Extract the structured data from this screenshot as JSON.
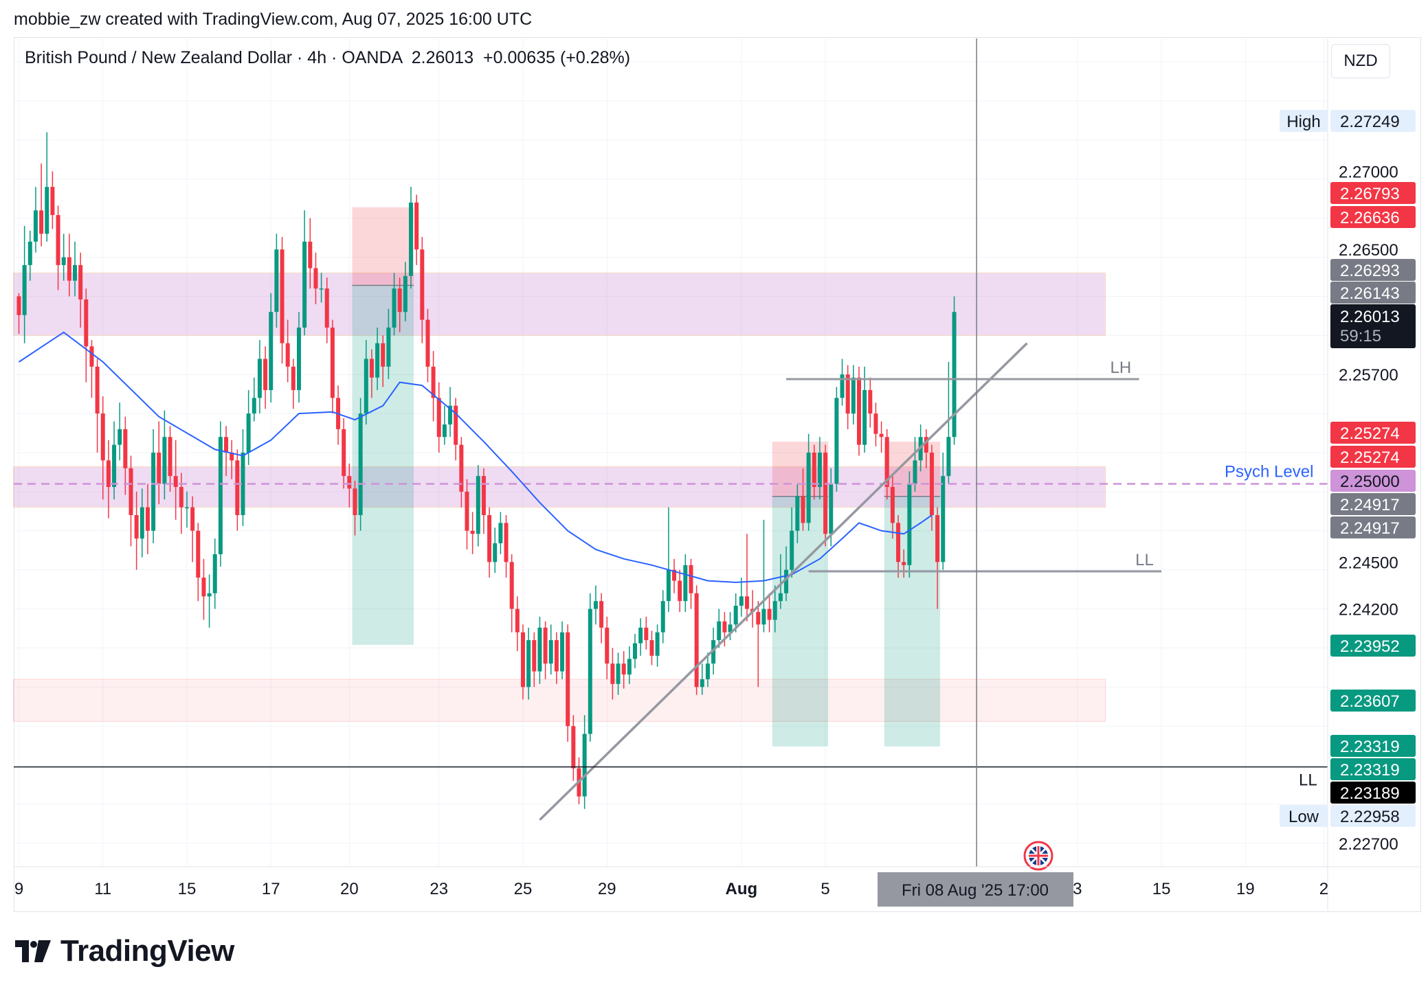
{
  "credit": "mobbie_zw created with TradingView.com, Aug 07, 2025 16:00 UTC",
  "header": {
    "symbol": "British Pound / New Zealand Dollar · 4h · OANDA",
    "price": "2.26013",
    "change": "+0.00635 (+0.28%)"
  },
  "currency": "NZD",
  "brand": "TradingView",
  "colors": {
    "up": "#089981",
    "down": "#f23645",
    "ema": "#2962ff",
    "zone": "#e1bee7",
    "psych": "#ce93d8",
    "trend": "#9598a1"
  },
  "chart_data": {
    "type": "candlestick",
    "symbol": "GBPNZD",
    "timeframe": "4h",
    "ylim": [
      2.2255,
      2.2785
    ],
    "y_ticks": [
      "2.27000",
      "2.26500",
      "2.25700",
      "2.24500",
      "2.24200",
      "2.22700"
    ],
    "x_ticks": [
      {
        "label": "9",
        "bar": 0
      },
      {
        "label": "11",
        "bar": 15
      },
      {
        "label": "15",
        "bar": 30
      },
      {
        "label": "17",
        "bar": 45
      },
      {
        "label": "20",
        "bar": 59
      },
      {
        "label": "23",
        "bar": 75
      },
      {
        "label": "25",
        "bar": 90
      },
      {
        "label": "29",
        "bar": 105
      },
      {
        "label": "Aug",
        "bar": 129
      },
      {
        "label": "5",
        "bar": 144
      },
      {
        "label": "3",
        "bar": 189
      },
      {
        "label": "15",
        "bar": 204
      },
      {
        "label": "19",
        "bar": 219
      },
      {
        "label": "2",
        "bar": 233
      }
    ],
    "cursor_label": "Fri 08 Aug '25   17:00",
    "cursor_bar": 171,
    "price_tags": [
      {
        "label": "High",
        "value": "2.27249",
        "kind": "high"
      },
      {
        "value": "2.26793",
        "kind": "red"
      },
      {
        "value": "2.26636",
        "kind": "red"
      },
      {
        "value": "2.26293",
        "kind": "gray"
      },
      {
        "value": "2.26143",
        "kind": "gray"
      },
      {
        "value": "2.26013",
        "kind": "last",
        "sub": "59:15"
      },
      {
        "value": "2.25274",
        "kind": "red"
      },
      {
        "value": "2.25274",
        "kind": "red"
      },
      {
        "value": "2.25000",
        "kind": "psych"
      },
      {
        "value": "2.24917",
        "kind": "gray"
      },
      {
        "value": "2.24917",
        "kind": "gray"
      },
      {
        "value": "2.23952",
        "kind": "green"
      },
      {
        "value": "2.23607",
        "kind": "green"
      },
      {
        "value": "2.23319",
        "kind": "green"
      },
      {
        "value": "2.23319",
        "kind": "green"
      },
      {
        "value": "2.23189",
        "kind": "black"
      },
      {
        "label": "Low",
        "value": "2.22958",
        "kind": "low"
      }
    ],
    "annotations": [
      {
        "text": "LH",
        "price": 2.2567
      },
      {
        "text": "LL",
        "price": 2.2444
      },
      {
        "text": "Psych Level",
        "price": 2.25
      },
      {
        "text": "LL",
        "price": 2.23189
      }
    ],
    "zones": [
      {
        "name": "supply-zone",
        "from_bar": 0,
        "to_bar": 194,
        "low": 2.2595,
        "high": 2.2635
      },
      {
        "name": "psych-zone",
        "from_bar": 0,
        "to_bar": 194,
        "low": 2.2485,
        "high": 2.2511
      },
      {
        "name": "demand-zone",
        "from_bar": 0,
        "to_bar": 194,
        "low": 2.2348,
        "high": 2.2375
      }
    ],
    "positions": [
      {
        "from_bar": 60,
        "to_bar": 70,
        "entry": 2.2627,
        "stop": 2.2677,
        "target": 2.2397
      },
      {
        "from_bar": 135,
        "to_bar": 144,
        "entry": 2.2492,
        "stop": 2.2527,
        "target": 2.2332
      },
      {
        "from_bar": 155,
        "to_bar": 164,
        "entry": 2.2492,
        "stop": 2.2527,
        "target": 2.2332
      }
    ],
    "candles": [
      [
        2.262,
        2.2608,
        2.2622,
        2.2596
      ],
      [
        2.2608,
        2.264,
        2.2665,
        2.259
      ],
      [
        2.264,
        2.2655,
        2.2662,
        2.263
      ],
      [
        2.2655,
        2.2675,
        2.269,
        2.2648
      ],
      [
        2.2675,
        2.266,
        2.2705,
        2.2652
      ],
      [
        2.266,
        2.269,
        2.2725,
        2.2655
      ],
      [
        2.269,
        2.2672,
        2.27,
        2.2663
      ],
      [
        2.2672,
        2.264,
        2.2678,
        2.2624
      ],
      [
        2.264,
        2.2645,
        2.266,
        2.263
      ],
      [
        2.2645,
        2.263,
        2.266,
        2.262
      ],
      [
        2.263,
        2.264,
        2.2655,
        2.262
      ],
      [
        2.264,
        2.2618,
        2.2648,
        2.26
      ],
      [
        2.2618,
        2.2588,
        2.2625,
        2.2565
      ],
      [
        2.2588,
        2.2575,
        2.2592,
        2.2555
      ],
      [
        2.2575,
        2.2545,
        2.258,
        2.252
      ],
      [
        2.2545,
        2.2515,
        2.2556,
        2.249
      ],
      [
        2.2515,
        2.2498,
        2.2528,
        2.2478
      ],
      [
        2.2498,
        2.2525,
        2.254,
        2.249
      ],
      [
        2.2525,
        2.2535,
        2.2552,
        2.2515
      ],
      [
        2.2535,
        2.251,
        2.2543,
        2.2493
      ],
      [
        2.251,
        2.248,
        2.2518,
        2.246
      ],
      [
        2.248,
        2.2465,
        2.2495,
        2.2445
      ],
      [
        2.2465,
        2.2485,
        2.2497,
        2.2453
      ],
      [
        2.2485,
        2.247,
        2.25,
        2.2455
      ],
      [
        2.247,
        2.252,
        2.2535,
        2.2462
      ],
      [
        2.252,
        2.25,
        2.254,
        2.2487
      ],
      [
        2.25,
        2.253,
        2.2547,
        2.249
      ],
      [
        2.253,
        2.2505,
        2.2537,
        2.2495
      ],
      [
        2.2505,
        2.2498,
        2.2528,
        2.2477
      ],
      [
        2.2498,
        2.2485,
        2.2507,
        2.2468
      ],
      [
        2.2485,
        2.2485,
        2.2495,
        2.2472
      ],
      [
        2.2485,
        2.247,
        2.2492,
        2.245
      ],
      [
        2.247,
        2.244,
        2.2475,
        2.2425
      ],
      [
        2.244,
        2.2428,
        2.2452,
        2.2413
      ],
      [
        2.2428,
        2.243,
        2.2442,
        2.2408
      ],
      [
        2.243,
        2.2455,
        2.2465,
        2.242
      ],
      [
        2.2455,
        2.253,
        2.254,
        2.2447
      ],
      [
        2.253,
        2.252,
        2.2537,
        2.2505
      ],
      [
        2.252,
        2.2515,
        2.2528,
        2.2503
      ],
      [
        2.2515,
        2.248,
        2.2522,
        2.247
      ],
      [
        2.248,
        2.252,
        2.2535,
        2.2473
      ],
      [
        2.252,
        2.2545,
        2.256,
        2.2512
      ],
      [
        2.2545,
        2.2555,
        2.2568,
        2.254
      ],
      [
        2.2555,
        2.258,
        2.2592,
        2.2545
      ],
      [
        2.258,
        2.256,
        2.2588,
        2.2548
      ],
      [
        2.256,
        2.261,
        2.2622,
        2.2552
      ],
      [
        2.261,
        2.265,
        2.266,
        2.26
      ],
      [
        2.265,
        2.259,
        2.2658,
        2.2577
      ],
      [
        2.259,
        2.2575,
        2.2605,
        2.2565
      ],
      [
        2.2575,
        2.256,
        2.258,
        2.2548
      ],
      [
        2.256,
        2.26,
        2.261,
        2.2552
      ],
      [
        2.26,
        2.2655,
        2.2675,
        2.2595
      ],
      [
        2.2655,
        2.2638,
        2.267,
        2.2625
      ],
      [
        2.2638,
        2.2625,
        2.2648,
        2.2615
      ],
      [
        2.2625,
        2.2625,
        2.2635,
        2.2616
      ],
      [
        2.2625,
        2.26,
        2.2632,
        2.259
      ],
      [
        2.26,
        2.2555,
        2.2605,
        2.2545
      ],
      [
        2.2555,
        2.2535,
        2.2563,
        2.2525
      ],
      [
        2.2535,
        2.2505,
        2.2542,
        2.2497
      ],
      [
        2.2505,
        2.2497,
        2.2513,
        2.2485
      ],
      [
        2.2497,
        2.248,
        2.2502,
        2.2467
      ],
      [
        2.248,
        2.2545,
        2.2555,
        2.247
      ],
      [
        2.2545,
        2.258,
        2.2592,
        2.2538
      ],
      [
        2.258,
        2.2568,
        2.2586,
        2.2555
      ],
      [
        2.2568,
        2.259,
        2.26,
        2.256
      ],
      [
        2.259,
        2.2575,
        2.2595,
        2.2562
      ],
      [
        2.2575,
        2.26,
        2.2612,
        2.2567
      ],
      [
        2.26,
        2.2625,
        2.2635,
        2.2595
      ],
      [
        2.2625,
        2.261,
        2.2632,
        2.2597
      ],
      [
        2.261,
        2.2633,
        2.2642,
        2.2604
      ],
      [
        2.2633,
        2.268,
        2.269,
        2.2625
      ],
      [
        2.268,
        2.265,
        2.2685,
        2.264
      ],
      [
        2.265,
        2.2605,
        2.2658,
        2.259
      ],
      [
        2.2605,
        2.2575,
        2.2612,
        2.2565
      ],
      [
        2.2575,
        2.2555,
        2.2585,
        2.254
      ],
      [
        2.2555,
        2.253,
        2.2565,
        2.252
      ],
      [
        2.253,
        2.2538,
        2.255,
        2.2525
      ],
      [
        2.2538,
        2.255,
        2.2562,
        2.253
      ],
      [
        2.255,
        2.2525,
        2.2555,
        2.2515
      ],
      [
        2.2525,
        2.2495,
        2.253,
        2.2485
      ],
      [
        2.2495,
        2.247,
        2.2503,
        2.2458
      ],
      [
        2.247,
        2.2468,
        2.2482,
        2.2455
      ],
      [
        2.2468,
        2.2505,
        2.2512,
        2.246
      ],
      [
        2.2505,
        2.248,
        2.251,
        2.2468
      ],
      [
        2.248,
        2.245,
        2.2485,
        2.244
      ],
      [
        2.245,
        2.2462,
        2.2472,
        2.2443
      ],
      [
        2.2462,
        2.2475,
        2.2482,
        2.2455
      ],
      [
        2.2475,
        2.245,
        2.248,
        2.244
      ],
      [
        2.245,
        2.242,
        2.2455,
        2.2405
      ],
      [
        2.242,
        2.2405,
        2.2428,
        2.2393
      ],
      [
        2.2405,
        2.237,
        2.241,
        2.2362
      ],
      [
        2.237,
        2.24,
        2.2408,
        2.2362
      ],
      [
        2.24,
        2.238,
        2.2405,
        2.237
      ],
      [
        2.238,
        2.2408,
        2.2415,
        2.2372
      ],
      [
        2.2408,
        2.2385,
        2.2412,
        2.2375
      ],
      [
        2.2385,
        2.24,
        2.241,
        2.2378
      ],
      [
        2.24,
        2.238,
        2.2405,
        2.2372
      ],
      [
        2.238,
        2.2405,
        2.2412,
        2.2375
      ],
      [
        2.2405,
        2.2345,
        2.241,
        2.2335
      ],
      [
        2.2345,
        2.2318,
        2.2352,
        2.231
      ],
      [
        2.2318,
        2.23,
        2.2325,
        2.2295
      ],
      [
        2.23,
        2.234,
        2.2352,
        2.2292
      ],
      [
        2.234,
        2.242,
        2.243,
        2.2335
      ],
      [
        2.242,
        2.2425,
        2.2435,
        2.241
      ],
      [
        2.2425,
        2.2408,
        2.243,
        2.2398
      ],
      [
        2.2408,
        2.2385,
        2.2415,
        2.2375
      ],
      [
        2.2385,
        2.2372,
        2.2395,
        2.2362
      ],
      [
        2.2372,
        2.2385,
        2.2392,
        2.2365
      ],
      [
        2.2385,
        2.2378,
        2.2393,
        2.2369
      ],
      [
        2.2378,
        2.2388,
        2.2396,
        2.2372
      ],
      [
        2.2388,
        2.2398,
        2.2404,
        2.2382
      ],
      [
        2.2398,
        2.2408,
        2.2414,
        2.239
      ],
      [
        2.2408,
        2.24,
        2.2415,
        2.2394
      ],
      [
        2.24,
        2.239,
        2.2406,
        2.2384
      ],
      [
        2.239,
        2.2405,
        2.241,
        2.2383
      ],
      [
        2.2405,
        2.2425,
        2.2432,
        2.2398
      ],
      [
        2.2425,
        2.2445,
        2.2485,
        2.2418
      ],
      [
        2.2445,
        2.2438,
        2.2452,
        2.243
      ],
      [
        2.2438,
        2.2425,
        2.2445,
        2.2418
      ],
      [
        2.2425,
        2.2448,
        2.2455,
        2.2418
      ],
      [
        2.2448,
        2.243,
        2.2452,
        2.242
      ],
      [
        2.243,
        2.237,
        2.2435,
        2.2365
      ],
      [
        2.237,
        2.2375,
        2.2385,
        2.2365
      ],
      [
        2.2375,
        2.2385,
        2.2392,
        2.237
      ],
      [
        2.2385,
        2.24,
        2.2408,
        2.2378
      ],
      [
        2.24,
        2.2412,
        2.242,
        2.2395
      ],
      [
        2.2412,
        2.2405,
        2.2418,
        2.2396
      ],
      [
        2.2405,
        2.241,
        2.2418,
        2.24
      ],
      [
        2.241,
        2.2422,
        2.243,
        2.2405
      ],
      [
        2.2422,
        2.2428,
        2.244,
        2.2415
      ],
      [
        2.2428,
        2.242,
        2.2468,
        2.2412
      ],
      [
        2.242,
        2.2418,
        2.2432,
        2.2408
      ],
      [
        2.2418,
        2.241,
        2.2425,
        2.237
      ],
      [
        2.241,
        2.242,
        2.2477,
        2.2405
      ],
      [
        2.242,
        2.2413,
        2.243,
        2.2405
      ],
      [
        2.2413,
        2.2425,
        2.2435,
        2.2405
      ],
      [
        2.2425,
        2.243,
        2.2455,
        2.242
      ],
      [
        2.243,
        2.2445,
        2.246,
        2.2425
      ],
      [
        2.2445,
        2.247,
        2.2485,
        2.244
      ],
      [
        2.247,
        2.2492,
        2.25,
        2.2462
      ],
      [
        2.2492,
        2.2475,
        2.251,
        2.247
      ],
      [
        2.2475,
        2.252,
        2.2532,
        2.247
      ],
      [
        2.252,
        2.2498,
        2.2525,
        2.249
      ],
      [
        2.2498,
        2.252,
        2.253,
        2.249
      ],
      [
        2.252,
        2.2468,
        2.2525,
        2.246
      ],
      [
        2.2468,
        2.25,
        2.251,
        2.246
      ],
      [
        2.25,
        2.2555,
        2.2562,
        2.2495
      ],
      [
        2.2555,
        2.257,
        2.258,
        2.255
      ],
      [
        2.257,
        2.2545,
        2.2576,
        2.2535
      ],
      [
        2.2545,
        2.2568,
        2.2576,
        2.2538
      ],
      [
        2.2568,
        2.2525,
        2.2575,
        2.2518
      ],
      [
        2.2525,
        2.256,
        2.2575,
        2.252
      ],
      [
        2.256,
        2.2545,
        2.2568,
        2.2536
      ],
      [
        2.2545,
        2.2532,
        2.2552,
        2.2524
      ],
      [
        2.2532,
        2.253,
        2.254,
        2.252
      ],
      [
        2.253,
        2.2498,
        2.2535,
        2.249
      ],
      [
        2.2498,
        2.2475,
        2.2505,
        2.2465
      ],
      [
        2.2475,
        2.245,
        2.248,
        2.244
      ],
      [
        2.245,
        2.2448,
        2.2458,
        2.244
      ],
      [
        2.2448,
        2.25,
        2.2508,
        2.244
      ],
      [
        2.25,
        2.2515,
        2.253,
        2.2495
      ],
      [
        2.2515,
        2.253,
        2.2538,
        2.2508
      ],
      [
        2.253,
        2.252,
        2.2535,
        2.251
      ],
      [
        2.252,
        2.248,
        2.2525,
        2.247
      ],
      [
        2.248,
        2.245,
        2.2485,
        2.242
      ],
      [
        2.245,
        2.2505,
        2.252,
        2.2445
      ],
      [
        2.2505,
        2.253,
        2.2578,
        2.25
      ],
      [
        2.253,
        2.261,
        2.262,
        2.2525
      ]
    ],
    "ema": [
      [
        0,
        2.2578
      ],
      [
        8,
        2.2597
      ],
      [
        15,
        2.2578
      ],
      [
        25,
        2.2543
      ],
      [
        35,
        2.2522
      ],
      [
        40,
        2.2518
      ],
      [
        45,
        2.2528
      ],
      [
        50,
        2.2545
      ],
      [
        56,
        2.2546
      ],
      [
        60,
        2.2541
      ],
      [
        65,
        2.255
      ],
      [
        68,
        2.2565
      ],
      [
        72,
        2.2563
      ],
      [
        78,
        2.2545
      ],
      [
        83,
        2.2527
      ],
      [
        88,
        2.2508
      ],
      [
        93,
        2.2488
      ],
      [
        98,
        2.247
      ],
      [
        103,
        2.2458
      ],
      [
        108,
        2.2452
      ],
      [
        113,
        2.2448
      ],
      [
        118,
        2.2443
      ],
      [
        123,
        2.2438
      ],
      [
        128,
        2.2437
      ],
      [
        133,
        2.2438
      ],
      [
        138,
        2.2442
      ],
      [
        143,
        2.2452
      ],
      [
        147,
        2.2465
      ],
      [
        150,
        2.2475
      ],
      [
        154,
        2.247
      ],
      [
        158,
        2.2468
      ],
      [
        161,
        2.2475
      ],
      [
        163,
        2.248
      ]
    ],
    "trendline": {
      "from": [
        93,
        2.2285
      ],
      "to": [
        180,
        2.259
      ]
    },
    "lh_line": {
      "from_bar": 137,
      "to_bar": 200,
      "price": 2.2567
    },
    "ll_line": {
      "from_bar": 141,
      "to_bar": 204,
      "price": 2.2444
    },
    "ll_black_line": {
      "price": 2.23189
    }
  }
}
